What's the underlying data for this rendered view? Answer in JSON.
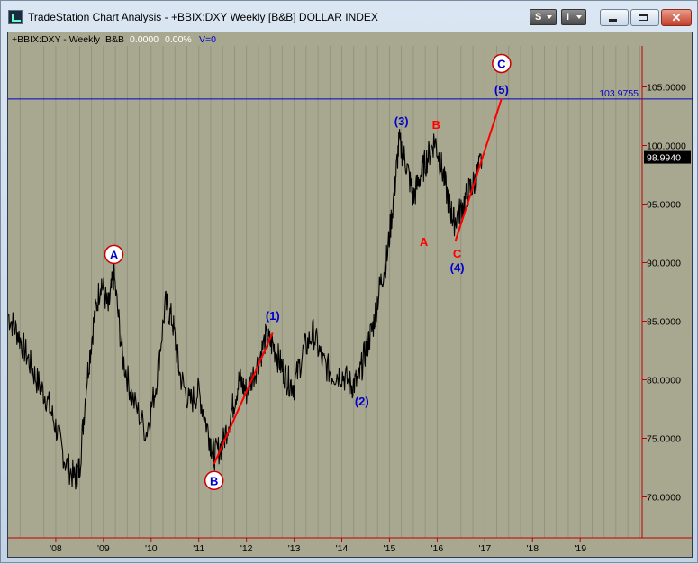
{
  "window": {
    "title": "TradeStation Chart Analysis - +BBIX:DXY Weekly [B&B] DOLLAR INDEX",
    "buttons": {
      "s_label": "S",
      "i_label": "I"
    }
  },
  "legend": {
    "symbol": "+BBIX:DXY - Weekly",
    "study": "B&B",
    "value": "0.0000",
    "pct": "0.00%",
    "volume": "V=0"
  },
  "colors": {
    "background": "#a8a890",
    "price": "#000000",
    "wave_line": "#ff0000",
    "level_line": "#0000cc",
    "grid": "#8f8f7a",
    "axis": "#c00000",
    "blue_label": "#0000cc",
    "red_label": "#ff0000"
  },
  "chart_data": {
    "type": "line",
    "title": "",
    "xlabel": "",
    "ylabel": "",
    "ylim": [
      66.5,
      108.5
    ],
    "xlim": [
      2007.0,
      2020.3
    ],
    "grid": true,
    "y_ticks": [
      "70.0000",
      "75.0000",
      "80.0000",
      "85.0000",
      "90.0000",
      "95.0000",
      "100.0000",
      "105.0000"
    ],
    "y_tick_values": [
      70,
      75,
      80,
      85,
      90,
      95,
      100,
      105
    ],
    "x_ticks": [
      "'08",
      "'09",
      "'10",
      "'11",
      "'12",
      "'13",
      "'14",
      "'15",
      "'16",
      "'17",
      "'18",
      "'19"
    ],
    "x_tick_values": [
      2008,
      2009,
      2010,
      2011,
      2012,
      2013,
      2014,
      2015,
      2016,
      2017,
      2018,
      2019
    ],
    "series": [
      {
        "type": "line",
        "x": [
          2007.0,
          2007.2,
          2007.4,
          2007.6,
          2007.8,
          2008.0,
          2008.2,
          2008.4,
          2008.5,
          2008.65,
          2008.8,
          2008.95,
          2009.1,
          2009.22,
          2009.4,
          2009.6,
          2009.9,
          2010.1,
          2010.3,
          2010.45,
          2010.6,
          2010.8,
          2011.0,
          2011.2,
          2011.32,
          2011.5,
          2011.7,
          2011.85,
          2012.0,
          2012.2,
          2012.4,
          2012.55,
          2012.7,
          2012.85,
          2013.0,
          2013.2,
          2013.4,
          2013.6,
          2013.8,
          2014.0,
          2014.2,
          2014.35,
          2014.5,
          2014.65,
          2014.8,
          2014.95,
          2015.1,
          2015.2,
          2015.35,
          2015.5,
          2015.65,
          2015.8,
          2015.95,
          2016.1,
          2016.25,
          2016.35,
          2016.5,
          2016.65,
          2016.8,
          2016.95
        ],
        "values": [
          85.5,
          84.0,
          82.0,
          80.0,
          78.5,
          76.0,
          73.0,
          71.5,
          72.5,
          80.0,
          85.0,
          88.5,
          86.0,
          89.0,
          82.0,
          78.5,
          75.5,
          79.5,
          86.5,
          85.0,
          80.5,
          78.0,
          79.0,
          75.5,
          73.5,
          74.5,
          77.5,
          80.0,
          79.0,
          81.0,
          83.5,
          83.0,
          81.5,
          80.0,
          79.5,
          82.5,
          84.0,
          81.5,
          80.5,
          80.5,
          79.5,
          80.0,
          82.5,
          84.5,
          88.0,
          90.5,
          96.0,
          100.3,
          98.5,
          95.5,
          97.5,
          99.0,
          100.5,
          98.0,
          95.0,
          93.5,
          94.5,
          96.0,
          97.0,
          98.99
        ]
      },
      {
        "name": "",
        "type": "segment",
        "x": [
          2011.32,
          2012.55
        ],
        "values": [
          72.8,
          84.0
        ]
      },
      {
        "name": "",
        "type": "segment",
        "x": [
          2016.38,
          2017.35
        ],
        "values": [
          91.8,
          104.0
        ]
      }
    ],
    "level_line": {
      "value": 103.9755,
      "label": "103.9755"
    },
    "last_price": {
      "value": 98.994,
      "label": "98.9940"
    },
    "annotations": [
      {
        "text": "A",
        "x": 2009.22,
        "y": 90.7,
        "style": "circle",
        "color": "#0000cc"
      },
      {
        "text": "B",
        "x": 2011.32,
        "y": 71.4,
        "style": "circle",
        "color": "#0000cc"
      },
      {
        "text": "C",
        "x": 2017.35,
        "y": 107.0,
        "style": "circle",
        "color": "#0000cc"
      },
      {
        "text": "(1)",
        "x": 2012.55,
        "y": 85.5,
        "style": "text",
        "color": "#0000cc"
      },
      {
        "text": "(2)",
        "x": 2014.42,
        "y": 78.2,
        "style": "text",
        "color": "#0000cc"
      },
      {
        "text": "(3)",
        "x": 2015.25,
        "y": 102.1,
        "style": "text",
        "color": "#0000cc"
      },
      {
        "text": "(4)",
        "x": 2016.42,
        "y": 89.6,
        "style": "text",
        "color": "#0000cc"
      },
      {
        "text": "(5)",
        "x": 2017.35,
        "y": 104.8,
        "style": "text",
        "color": "#0000cc"
      },
      {
        "text": "A",
        "x": 2015.72,
        "y": 91.8,
        "style": "text",
        "color": "#ff0000"
      },
      {
        "text": "B",
        "x": 2015.98,
        "y": 101.8,
        "style": "text",
        "color": "#ff0000"
      },
      {
        "text": "C",
        "x": 2016.42,
        "y": 90.8,
        "style": "text",
        "color": "#ff0000"
      }
    ]
  }
}
